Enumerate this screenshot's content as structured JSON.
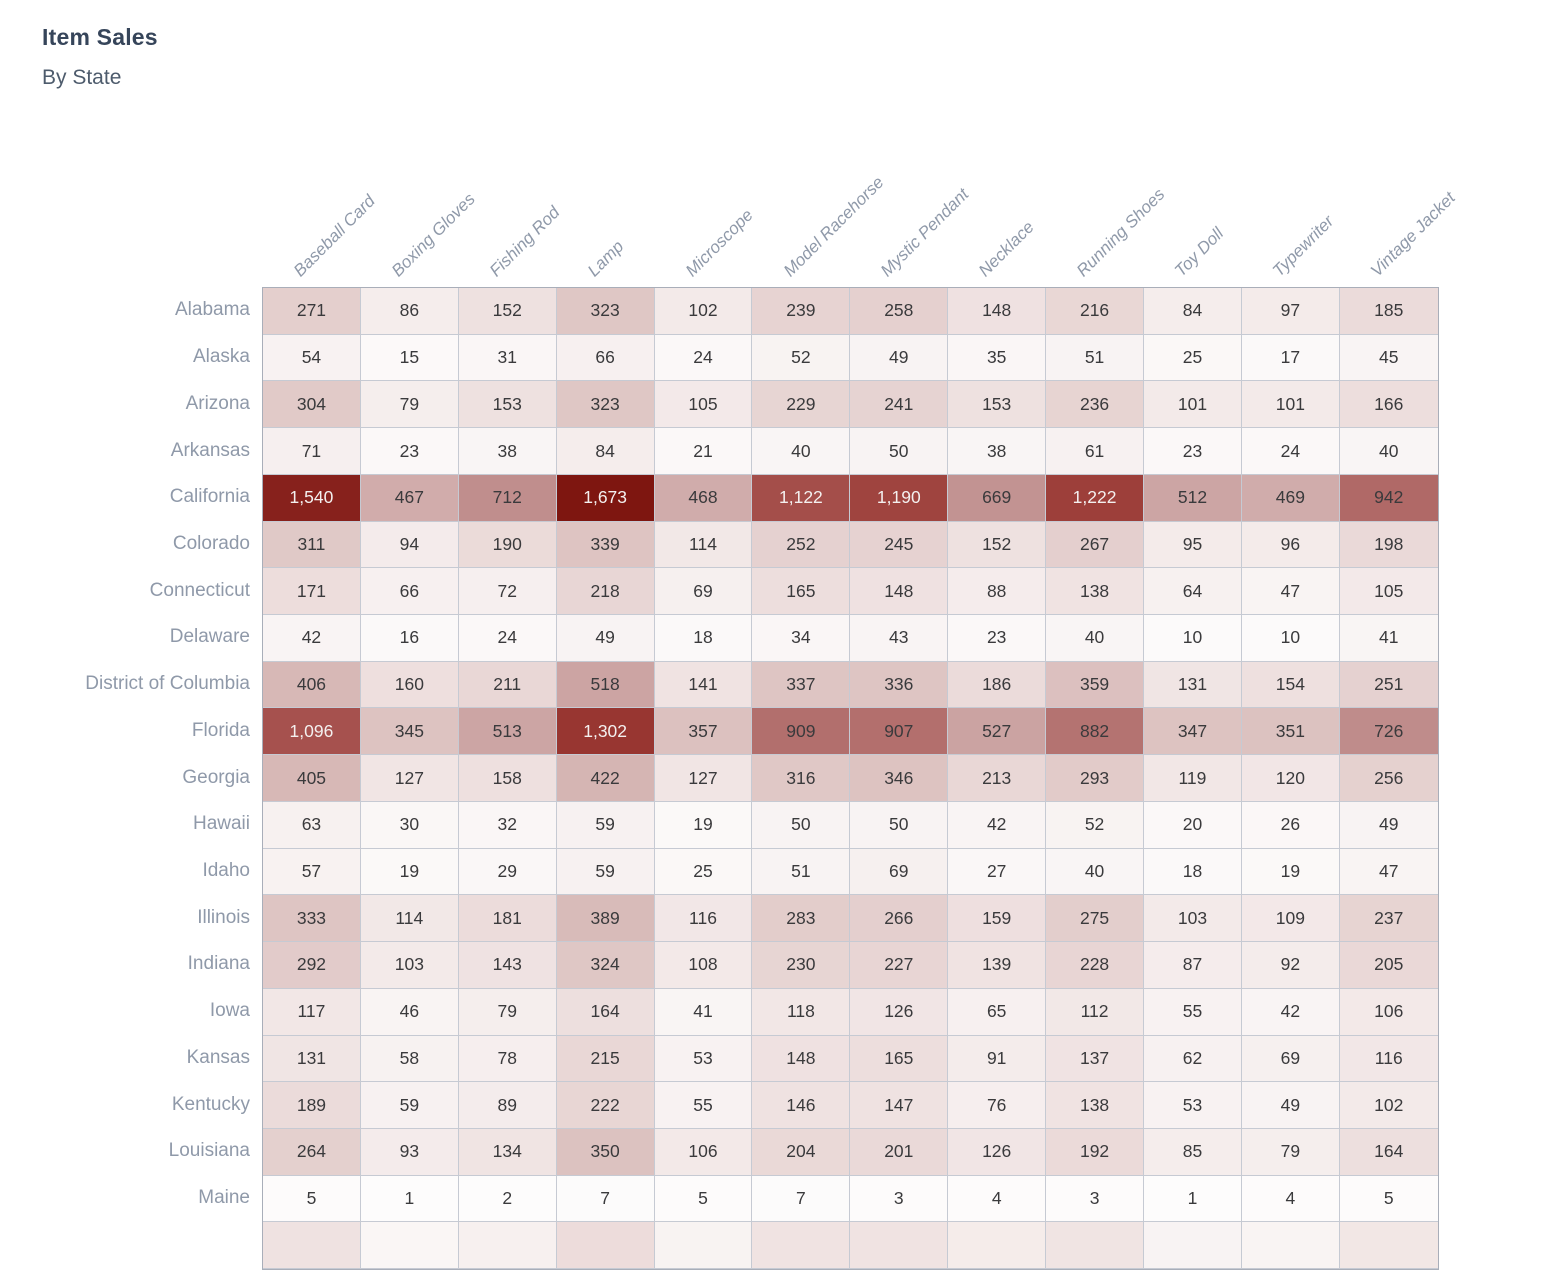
{
  "title": "Item Sales",
  "subtitle": "By State",
  "colors": {
    "title": "#36455a",
    "subtitle": "#4d5b6c",
    "axis_label": "#8f99a9",
    "grid_border": "#c6cad3",
    "outer_border": "#a9aeb9"
  },
  "chart_data": {
    "type": "heatmap",
    "title": "Item Sales",
    "subtitle": "By State",
    "columns": [
      "Baseball Card",
      "Boxing Gloves",
      "Fishing Rod",
      "Lamp",
      "Microscope",
      "Model Racehorse",
      "Mystic Pendant",
      "Necklace",
      "Running Shoes",
      "Toy Doll",
      "Typewriter",
      "Vintage Jacket"
    ],
    "rows": [
      {
        "state": "Alabama",
        "values": [
          271,
          86,
          152,
          323,
          102,
          239,
          258,
          148,
          216,
          84,
          97,
          185
        ]
      },
      {
        "state": "Alaska",
        "values": [
          54,
          15,
          31,
          66,
          24,
          52,
          49,
          35,
          51,
          25,
          17,
          45
        ]
      },
      {
        "state": "Arizona",
        "values": [
          304,
          79,
          153,
          323,
          105,
          229,
          241,
          153,
          236,
          101,
          101,
          166
        ]
      },
      {
        "state": "Arkansas",
        "values": [
          71,
          23,
          38,
          84,
          21,
          40,
          50,
          38,
          61,
          23,
          24,
          40
        ]
      },
      {
        "state": "California",
        "values": [
          1540,
          467,
          712,
          1673,
          468,
          1122,
          1190,
          669,
          1222,
          512,
          469,
          942
        ]
      },
      {
        "state": "Colorado",
        "values": [
          311,
          94,
          190,
          339,
          114,
          252,
          245,
          152,
          267,
          95,
          96,
          198
        ]
      },
      {
        "state": "Connecticut",
        "values": [
          171,
          66,
          72,
          218,
          69,
          165,
          148,
          88,
          138,
          64,
          47,
          105
        ]
      },
      {
        "state": "Delaware",
        "values": [
          42,
          16,
          24,
          49,
          18,
          34,
          43,
          23,
          40,
          10,
          10,
          41
        ]
      },
      {
        "state": "District of Columbia",
        "values": [
          406,
          160,
          211,
          518,
          141,
          337,
          336,
          186,
          359,
          131,
          154,
          251
        ]
      },
      {
        "state": "Florida",
        "values": [
          1096,
          345,
          513,
          1302,
          357,
          909,
          907,
          527,
          882,
          347,
          351,
          726
        ]
      },
      {
        "state": "Georgia",
        "values": [
          405,
          127,
          158,
          422,
          127,
          316,
          346,
          213,
          293,
          119,
          120,
          256
        ]
      },
      {
        "state": "Hawaii",
        "values": [
          63,
          30,
          32,
          59,
          19,
          50,
          50,
          42,
          52,
          20,
          26,
          49
        ]
      },
      {
        "state": "Idaho",
        "values": [
          57,
          19,
          29,
          59,
          25,
          51,
          69,
          27,
          40,
          18,
          19,
          47
        ]
      },
      {
        "state": "Illinois",
        "values": [
          333,
          114,
          181,
          389,
          116,
          283,
          266,
          159,
          275,
          103,
          109,
          237
        ]
      },
      {
        "state": "Indiana",
        "values": [
          292,
          103,
          143,
          324,
          108,
          230,
          227,
          139,
          228,
          87,
          92,
          205
        ]
      },
      {
        "state": "Iowa",
        "values": [
          117,
          46,
          79,
          164,
          41,
          118,
          126,
          65,
          112,
          55,
          42,
          106
        ]
      },
      {
        "state": "Kansas",
        "values": [
          131,
          58,
          78,
          215,
          53,
          148,
          165,
          91,
          137,
          62,
          69,
          116
        ]
      },
      {
        "state": "Kentucky",
        "values": [
          189,
          59,
          89,
          222,
          55,
          146,
          147,
          76,
          138,
          53,
          49,
          102
        ]
      },
      {
        "state": "Louisiana",
        "values": [
          264,
          93,
          134,
          350,
          106,
          204,
          201,
          126,
          192,
          85,
          79,
          164
        ]
      },
      {
        "state": "Maine",
        "values": [
          5,
          1,
          2,
          7,
          5,
          7,
          3,
          4,
          3,
          1,
          4,
          5
        ]
      }
    ],
    "value_range": [
      1,
      1673
    ],
    "number_format": "thousands-comma",
    "legend_position": "none",
    "color_scale": {
      "type": "sequential-red",
      "stops": [
        {
          "t": 0,
          "color": "#fdfcfc"
        },
        {
          "t": 0.1,
          "color": "#eddedd"
        },
        {
          "t": 0.2,
          "color": "#dec5c3"
        },
        {
          "t": 0.3,
          "color": "#cda6a5"
        },
        {
          "t": 0.45,
          "color": "#bd8988"
        },
        {
          "t": 0.6,
          "color": "#ac5f5c"
        },
        {
          "t": 0.75,
          "color": "#9b3a35"
        },
        {
          "t": 1,
          "color": "#7e1610"
        }
      ],
      "white_text_threshold": 0.6,
      "dark_text_color": "#3a3a3c",
      "light_text_color": "#f4f0ef"
    },
    "partial_next_row": {
      "visible": true,
      "cell_colors": [
        "#efe2e1",
        "#faf6f5",
        "#f7f0ef",
        "#eddcdb",
        "#f8f3f2",
        "#f0e3e2",
        "#f0e3e2",
        "#f5ecea",
        "#f0e4e3",
        "#f8f3f3",
        "#f9f4f3",
        "#f2e7e5"
      ]
    }
  }
}
